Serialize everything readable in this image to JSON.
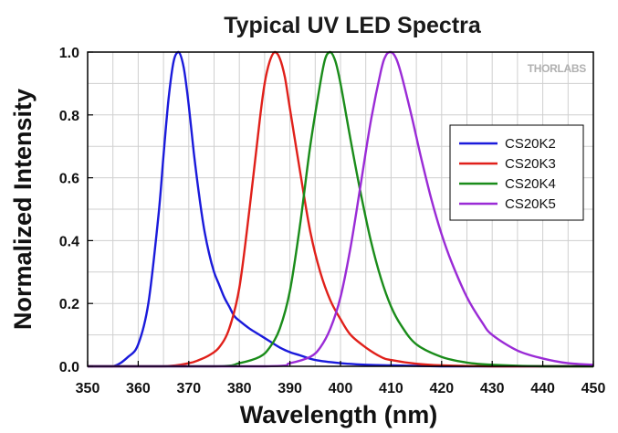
{
  "chart_data": {
    "type": "line",
    "title": "Typical UV LED Spectra",
    "xlabel": "Wavelength (nm)",
    "ylabel": "Normalized Intensity",
    "xlim": [
      350,
      450
    ],
    "ylim": [
      0,
      1.0
    ],
    "x_ticks": [
      350,
      360,
      370,
      380,
      390,
      400,
      410,
      420,
      430,
      440,
      450
    ],
    "y_ticks": [
      "0.0",
      "0.2",
      "0.4",
      "0.6",
      "0.8",
      "1.0"
    ],
    "grid": true,
    "legend_position": "right",
    "watermark": "THORLABS",
    "series": [
      {
        "name": "CS20K2",
        "color": "#1a1adb",
        "x": [
          350,
          355,
          358,
          360,
          362,
          364,
          365,
          366,
          367,
          368,
          369,
          370,
          371,
          372,
          373,
          374,
          375,
          376,
          377,
          378,
          379,
          380,
          382,
          384,
          386,
          388,
          390,
          392,
          395,
          400,
          405,
          410,
          420,
          430,
          450
        ],
        "y": [
          0.0,
          0.0,
          0.03,
          0.07,
          0.2,
          0.48,
          0.67,
          0.85,
          0.97,
          1.0,
          0.95,
          0.83,
          0.68,
          0.55,
          0.44,
          0.36,
          0.3,
          0.26,
          0.22,
          0.19,
          0.16,
          0.145,
          0.12,
          0.1,
          0.08,
          0.06,
          0.045,
          0.035,
          0.02,
          0.01,
          0.005,
          0.003,
          0.0,
          0.0,
          0.0
        ]
      },
      {
        "name": "CS20K3",
        "color": "#e0201a",
        "x": [
          350,
          365,
          370,
          372,
          374,
          376,
          378,
          380,
          382,
          384,
          385,
          386,
          387,
          388,
          389,
          390,
          392,
          394,
          396,
          398,
          400,
          402,
          405,
          408,
          410,
          415,
          420,
          430,
          450
        ],
        "y": [
          0.0,
          0.0,
          0.01,
          0.02,
          0.035,
          0.06,
          0.12,
          0.25,
          0.5,
          0.78,
          0.9,
          0.97,
          1.0,
          0.98,
          0.92,
          0.82,
          0.62,
          0.43,
          0.3,
          0.21,
          0.15,
          0.1,
          0.06,
          0.03,
          0.02,
          0.008,
          0.003,
          0.0,
          0.0
        ]
      },
      {
        "name": "CS20K4",
        "color": "#1a8c1a",
        "x": [
          350,
          375,
          380,
          384,
          386,
          388,
          390,
          392,
          394,
          396,
          397,
          398,
          399,
          400,
          402,
          404,
          406,
          408,
          410,
          412,
          415,
          420,
          425,
          430,
          440,
          450
        ],
        "y": [
          0.0,
          0.0,
          0.01,
          0.03,
          0.06,
          0.12,
          0.24,
          0.45,
          0.7,
          0.9,
          0.98,
          1.0,
          0.97,
          0.9,
          0.72,
          0.55,
          0.4,
          0.28,
          0.19,
          0.13,
          0.07,
          0.03,
          0.012,
          0.005,
          0.0,
          0.0
        ]
      },
      {
        "name": "CS20K5",
        "color": "#9a2bd6",
        "x": [
          350,
          385,
          390,
          394,
          396,
          398,
          400,
          402,
          404,
          406,
          408,
          409,
          410,
          411,
          412,
          414,
          416,
          418,
          420,
          422,
          425,
          428,
          430,
          435,
          440,
          445,
          450
        ],
        "y": [
          0.0,
          0.0,
          0.01,
          0.03,
          0.06,
          0.12,
          0.22,
          0.38,
          0.58,
          0.78,
          0.94,
          0.99,
          1.0,
          0.98,
          0.93,
          0.8,
          0.66,
          0.53,
          0.42,
          0.33,
          0.22,
          0.14,
          0.1,
          0.05,
          0.025,
          0.01,
          0.005
        ]
      }
    ]
  }
}
